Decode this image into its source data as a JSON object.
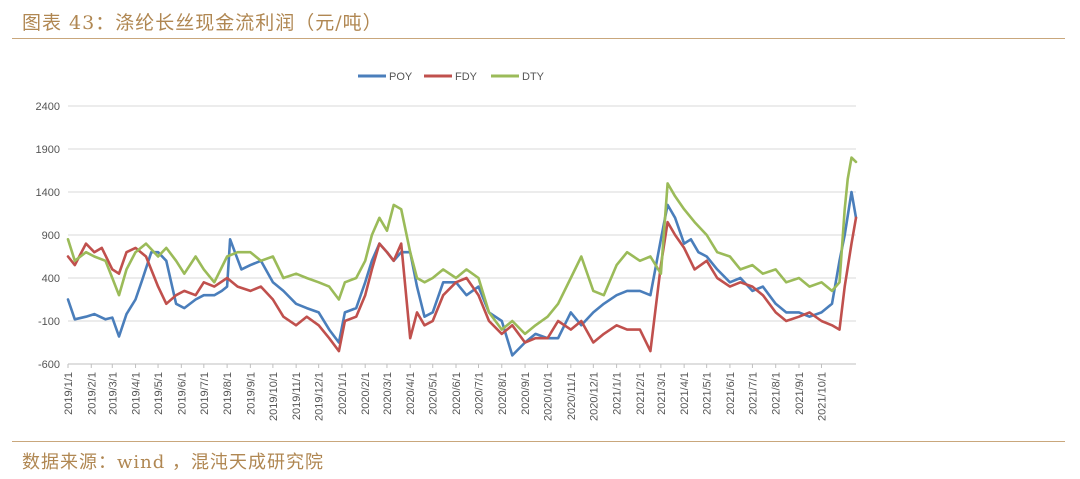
{
  "header": {
    "title": "图表 43：涤纶长丝现金流利润（元/吨）"
  },
  "footer": {
    "source": "数据来源：wind ，混沌天成研究院"
  },
  "chart_data": {
    "type": "line",
    "title": "",
    "xlabel": "",
    "ylabel": "",
    "ylim": [
      -600,
      2400
    ],
    "yticks": [
      -600,
      -100,
      400,
      900,
      1400,
      1900,
      2400
    ],
    "xlim": [
      "2019-01-01",
      "2021-11-16"
    ],
    "xticks": [
      "2019/1/1",
      "2019/2/1",
      "2019/3/1",
      "2019/4/1",
      "2019/5/1",
      "2019/6/1",
      "2019/7/1",
      "2019/8/1",
      "2019/9/1",
      "2019/10/1",
      "2019/11/1",
      "2019/12/1",
      "2020/1/1",
      "2020/2/1",
      "2020/3/1",
      "2020/4/1",
      "2020/5/1",
      "2020/6/1",
      "2020/7/1",
      "2020/8/1",
      "2020/9/1",
      "2020/10/1",
      "2020/11/1",
      "2020/12/1",
      "2021/1/1",
      "2021/2/1",
      "2021/3/1",
      "2021/4/1",
      "2021/5/1",
      "2021/6/1",
      "2021/7/1",
      "2021/8/1",
      "2021/9/1",
      "2021/10/1"
    ],
    "grid": "horizontal",
    "legend": "top-center",
    "series": [
      {
        "name": "POY",
        "color": "#4a7ebb",
        "x": [
          "2019-01-01",
          "2019-01-10",
          "2019-01-25",
          "2019-02-05",
          "2019-02-20",
          "2019-03-01",
          "2019-03-10",
          "2019-03-20",
          "2019-04-01",
          "2019-04-10",
          "2019-04-22",
          "2019-05-01",
          "2019-05-12",
          "2019-05-25",
          "2019-06-05",
          "2019-06-20",
          "2019-07-01",
          "2019-07-15",
          "2019-07-25",
          "2019-08-01",
          "2019-08-05",
          "2019-08-20",
          "2019-09-01",
          "2019-09-15",
          "2019-10-01",
          "2019-10-15",
          "2019-11-01",
          "2019-11-15",
          "2019-12-01",
          "2019-12-15",
          "2019-12-28",
          "2020-01-05",
          "2020-01-20",
          "2020-02-01",
          "2020-02-10",
          "2020-02-20",
          "2020-03-01",
          "2020-03-10",
          "2020-03-20",
          "2020-04-01",
          "2020-04-10",
          "2020-04-20",
          "2020-05-01",
          "2020-05-15",
          "2020-06-01",
          "2020-06-15",
          "2020-07-01",
          "2020-07-15",
          "2020-08-01",
          "2020-08-15",
          "2020-09-01",
          "2020-09-15",
          "2020-10-01",
          "2020-10-15",
          "2020-11-01",
          "2020-11-15",
          "2020-12-01",
          "2020-12-15",
          "2021-01-01",
          "2021-01-15",
          "2021-02-01",
          "2021-02-15",
          "2021-03-01",
          "2021-03-10",
          "2021-03-20",
          "2021-04-01",
          "2021-04-10",
          "2021-04-20",
          "2021-05-01",
          "2021-05-15",
          "2021-06-01",
          "2021-06-15",
          "2021-07-01",
          "2021-07-15",
          "2021-08-01",
          "2021-08-15",
          "2021-09-01",
          "2021-09-15",
          "2021-10-01",
          "2021-10-15",
          "2021-10-25",
          "2021-11-01",
          "2021-11-10",
          "2021-11-16"
        ],
        "values": [
          150,
          -80,
          -50,
          -20,
          -80,
          -60,
          -280,
          -20,
          150,
          380,
          700,
          700,
          600,
          100,
          50,
          150,
          200,
          200,
          250,
          300,
          850,
          500,
          550,
          600,
          350,
          250,
          100,
          50,
          0,
          -200,
          -350,
          0,
          50,
          350,
          600,
          800,
          700,
          600,
          700,
          700,
          300,
          -50,
          0,
          350,
          350,
          200,
          300,
          0,
          -100,
          -500,
          -350,
          -250,
          -300,
          -300,
          0,
          -150,
          0,
          100,
          200,
          250,
          250,
          200,
          850,
          1250,
          1100,
          800,
          850,
          700,
          650,
          500,
          350,
          400,
          250,
          300,
          100,
          0,
          0,
          -50,
          0,
          100,
          600,
          900,
          1400,
          1100
        ]
      },
      {
        "name": "FDY",
        "color": "#c0504d",
        "x": [
          "2019-01-01",
          "2019-01-10",
          "2019-01-25",
          "2019-02-05",
          "2019-02-15",
          "2019-03-01",
          "2019-03-10",
          "2019-03-20",
          "2019-04-01",
          "2019-04-15",
          "2019-05-01",
          "2019-05-12",
          "2019-05-25",
          "2019-06-05",
          "2019-06-20",
          "2019-07-01",
          "2019-07-15",
          "2019-08-01",
          "2019-08-15",
          "2019-09-01",
          "2019-09-15",
          "2019-10-01",
          "2019-10-15",
          "2019-11-01",
          "2019-11-15",
          "2019-12-01",
          "2019-12-15",
          "2019-12-28",
          "2020-01-05",
          "2020-01-20",
          "2020-02-01",
          "2020-02-10",
          "2020-02-20",
          "2020-03-01",
          "2020-03-10",
          "2020-03-20",
          "2020-04-01",
          "2020-04-10",
          "2020-04-20",
          "2020-05-01",
          "2020-05-15",
          "2020-06-01",
          "2020-06-15",
          "2020-07-01",
          "2020-07-15",
          "2020-08-01",
          "2020-08-15",
          "2020-09-01",
          "2020-09-15",
          "2020-10-01",
          "2020-10-15",
          "2020-11-01",
          "2020-11-15",
          "2020-12-01",
          "2020-12-15",
          "2021-01-01",
          "2021-01-15",
          "2021-02-01",
          "2021-02-15",
          "2021-03-01",
          "2021-03-10",
          "2021-03-20",
          "2021-04-01",
          "2021-04-15",
          "2021-05-01",
          "2021-05-15",
          "2021-06-01",
          "2021-06-15",
          "2021-07-01",
          "2021-07-15",
          "2021-08-01",
          "2021-08-15",
          "2021-09-01",
          "2021-09-15",
          "2021-10-01",
          "2021-10-15",
          "2021-10-25",
          "2021-11-01",
          "2021-11-10",
          "2021-11-16"
        ],
        "values": [
          650,
          550,
          800,
          700,
          750,
          500,
          450,
          700,
          750,
          650,
          300,
          100,
          200,
          250,
          200,
          350,
          300,
          400,
          300,
          250,
          300,
          150,
          -50,
          -150,
          -50,
          -150,
          -300,
          -450,
          -100,
          -50,
          200,
          500,
          800,
          700,
          600,
          800,
          -300,
          0,
          -150,
          -100,
          200,
          350,
          400,
          200,
          -100,
          -250,
          -150,
          -350,
          -300,
          -300,
          -100,
          -200,
          -100,
          -350,
          -250,
          -150,
          -200,
          -200,
          -450,
          550,
          1050,
          900,
          750,
          500,
          600,
          400,
          300,
          350,
          300,
          200,
          0,
          -100,
          -50,
          0,
          -100,
          -150,
          -200,
          300,
          800,
          1100
        ]
      },
      {
        "name": "DTY",
        "color": "#9bbb59",
        "x": [
          "2019-01-01",
          "2019-01-10",
          "2019-01-25",
          "2019-02-05",
          "2019-02-20",
          "2019-03-01",
          "2019-03-10",
          "2019-03-20",
          "2019-04-01",
          "2019-04-15",
          "2019-05-01",
          "2019-05-12",
          "2019-05-25",
          "2019-06-05",
          "2019-06-20",
          "2019-07-01",
          "2019-07-15",
          "2019-08-01",
          "2019-08-15",
          "2019-09-01",
          "2019-09-15",
          "2019-10-01",
          "2019-10-15",
          "2019-11-01",
          "2019-11-15",
          "2019-12-01",
          "2019-12-15",
          "2019-12-28",
          "2020-01-05",
          "2020-01-20",
          "2020-02-01",
          "2020-02-10",
          "2020-02-20",
          "2020-03-01",
          "2020-03-10",
          "2020-03-20",
          "2020-04-01",
          "2020-04-10",
          "2020-04-20",
          "2020-05-01",
          "2020-05-15",
          "2020-06-01",
          "2020-06-15",
          "2020-07-01",
          "2020-07-15",
          "2020-08-01",
          "2020-08-15",
          "2020-09-01",
          "2020-09-15",
          "2020-10-01",
          "2020-10-15",
          "2020-11-01",
          "2020-11-15",
          "2020-12-01",
          "2020-12-15",
          "2021-01-01",
          "2021-01-15",
          "2021-02-01",
          "2021-02-15",
          "2021-03-01",
          "2021-03-10",
          "2021-03-20",
          "2021-04-01",
          "2021-04-15",
          "2021-05-01",
          "2021-05-15",
          "2021-06-01",
          "2021-06-15",
          "2021-07-01",
          "2021-07-15",
          "2021-08-01",
          "2021-08-15",
          "2021-09-01",
          "2021-09-15",
          "2021-10-01",
          "2021-10-15",
          "2021-10-25",
          "2021-11-01",
          "2021-11-05",
          "2021-11-10",
          "2021-11-16"
        ],
        "values": [
          850,
          600,
          700,
          650,
          600,
          400,
          200,
          500,
          700,
          800,
          650,
          750,
          600,
          450,
          650,
          500,
          350,
          650,
          700,
          700,
          600,
          650,
          400,
          450,
          400,
          350,
          300,
          150,
          350,
          400,
          600,
          900,
          1100,
          950,
          1250,
          1200,
          700,
          400,
          350,
          400,
          500,
          400,
          500,
          400,
          0,
          -200,
          -100,
          -250,
          -150,
          -50,
          100,
          400,
          650,
          250,
          200,
          550,
          700,
          600,
          650,
          450,
          1500,
          1350,
          1200,
          1050,
          900,
          700,
          650,
          500,
          550,
          450,
          500,
          350,
          400,
          300,
          350,
          250,
          350,
          1200,
          1550,
          1800,
          1750
        ]
      }
    ]
  }
}
